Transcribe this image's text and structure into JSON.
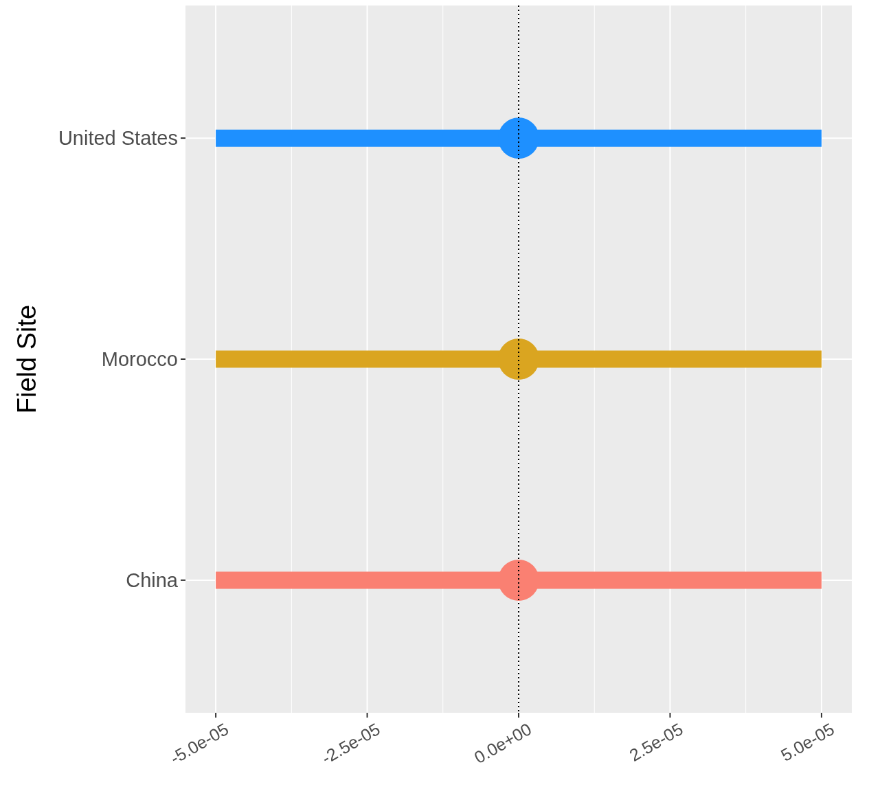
{
  "chart_data": {
    "type": "scatter",
    "orientation": "horizontal",
    "ylabel": "Field Site",
    "categories": [
      "United States",
      "Morocco",
      "China"
    ],
    "values": [
      0,
      0,
      0
    ],
    "errors": [
      5e-05,
      5e-05,
      5e-05
    ],
    "colors": [
      "#1e90ff",
      "#daa520",
      "#fa8072"
    ],
    "xlim": [
      -5.5e-05,
      5.5e-05
    ],
    "xticks": [
      {
        "value": -5e-05,
        "label": "-5.0e-05"
      },
      {
        "value": -2.5e-05,
        "label": "-2.5e-05"
      },
      {
        "value": 0,
        "label": "0.0e+00"
      },
      {
        "value": 2.5e-05,
        "label": "2.5e-05"
      },
      {
        "value": 5e-05,
        "label": "5.0e-05"
      }
    ],
    "ref_lines": [
      {
        "axis": "x",
        "value": 0,
        "color": "#000000",
        "line_style": "dotted"
      }
    ],
    "grid": true,
    "marker": "circle"
  }
}
